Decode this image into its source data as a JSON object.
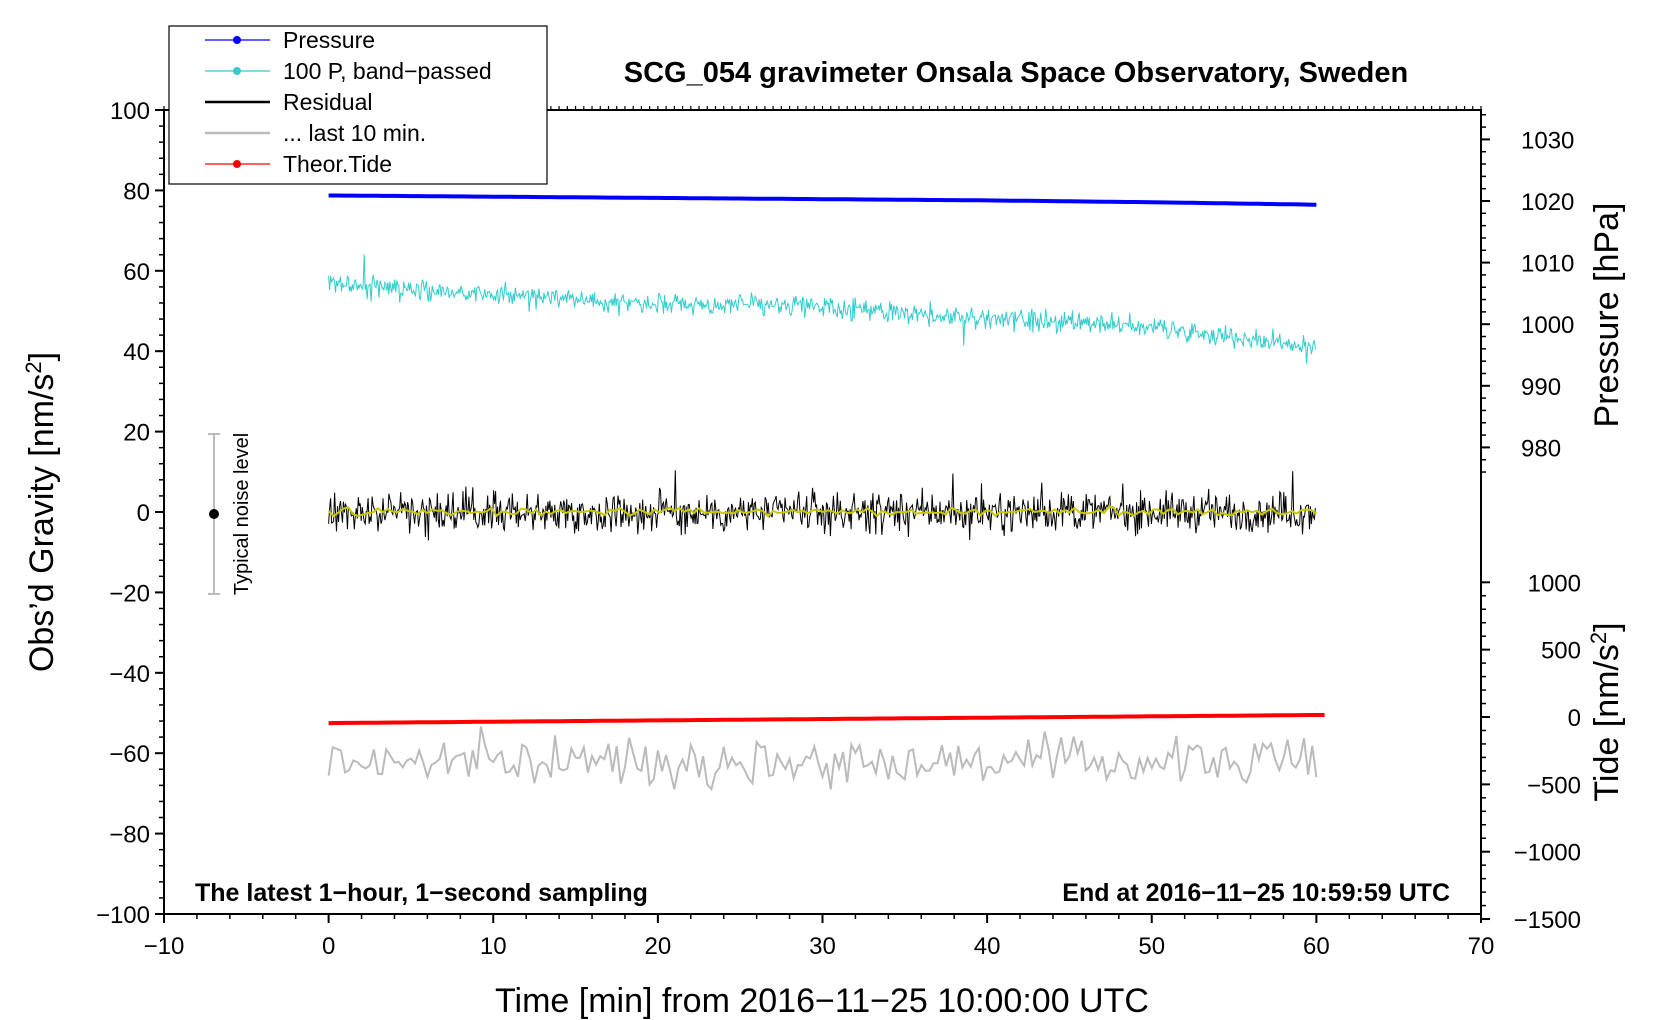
{
  "chart_data": {
    "type": "line",
    "title": "SCG_054 gravimeter Onsala Space Observatory, Sweden",
    "xlabel": "Time [min] from 2016−11−25 10:00:00 UTC",
    "ylabel": "Obs’d Gravity [nm/s",
    "ylabel_sup": "2",
    "ylabel_end": "]",
    "y2label": "Pressure [hPa]",
    "y3label": "Tide [nm/s",
    "y3label_sup": "2",
    "y3label_end": "]",
    "xlim": [
      -10,
      70
    ],
    "ylim": [
      -100,
      100
    ],
    "pressure_axis": {
      "ticks": [
        980,
        990,
        1000,
        1010,
        1020,
        1030
      ],
      "tick_labels": [
        "980",
        "990",
        "1000",
        "1010",
        "1020",
        "1030"
      ]
    },
    "tide_axis": {
      "ticks": [
        -1500,
        -1000,
        -500,
        0,
        500,
        1000
      ],
      "tick_labels": [
        "−1500",
        "−1000",
        "−500",
        "0",
        "500",
        "1000"
      ]
    },
    "x_ticks": [
      -10,
      0,
      10,
      20,
      30,
      40,
      50,
      60,
      70
    ],
    "x_tick_labels": [
      "−10",
      "0",
      "10",
      "20",
      "30",
      "40",
      "50",
      "60",
      "70"
    ],
    "y_ticks": [
      -100,
      -80,
      -60,
      -40,
      -20,
      0,
      20,
      40,
      60,
      80,
      100
    ],
    "y_tick_labels": [
      "−100",
      "−80",
      "−60",
      "−40",
      "−20",
      "0",
      "20",
      "40",
      "60",
      "80",
      "100"
    ],
    "series": [
      {
        "name": "Pressure",
        "color": "#0000ff",
        "axis": "pressure_hPa",
        "x": [
          0,
          10,
          20,
          30,
          40,
          50,
          60
        ],
        "values": [
          1020.9,
          1020.7,
          1020.5,
          1020.3,
          1020.1,
          1019.8,
          1019.4
        ]
      },
      {
        "name": "100 P, band−passed",
        "color": "#33cccc",
        "axis": "gravity_nm_s2",
        "x": [
          0,
          10,
          20,
          30,
          40,
          50,
          60
        ],
        "values": [
          57,
          54,
          52,
          51,
          48,
          46,
          41
        ]
      },
      {
        "name": "Residual",
        "color": "#000000",
        "axis": "gravity_nm_s2",
        "x": [
          0,
          10,
          20,
          30,
          40,
          50,
          60
        ],
        "values": [
          0,
          0,
          0,
          0,
          0,
          0,
          0
        ]
      },
      {
        "name": "... last 10 min.",
        "color": "#bbbbbb",
        "axis": "gravity_nm_s2",
        "x": [
          0,
          10,
          20,
          30,
          40,
          50,
          60
        ],
        "values": [
          -62,
          -62,
          -62,
          -62,
          -62,
          -62,
          -62
        ]
      },
      {
        "name": "Theor.Tide",
        "color": "#ff0000",
        "axis": "tide_nm_s2",
        "x": [
          0,
          10,
          20,
          30,
          40,
          50,
          60
        ],
        "values": [
          -45,
          -35,
          -25,
          -15,
          -5,
          5,
          15
        ]
      }
    ],
    "noise_bar": {
      "label": "Typical noise level",
      "x": -7,
      "center": 0,
      "range": [
        -20,
        20
      ]
    },
    "notes": {
      "left": "The latest 1−hour, 1−second sampling",
      "right": "End at 2016−11−25 10:59:59 UTC"
    },
    "legend_position": "top-left"
  }
}
